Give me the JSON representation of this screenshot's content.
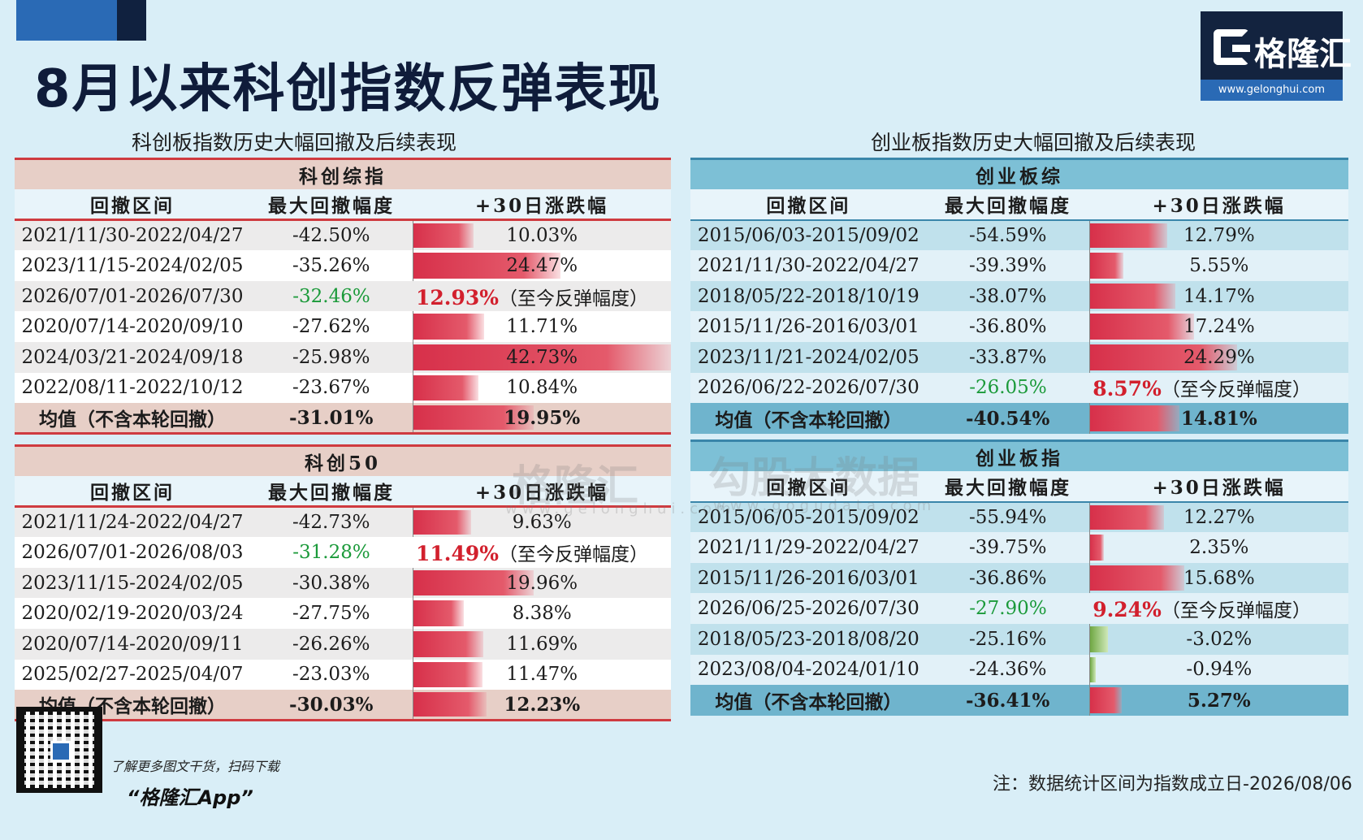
{
  "title": "8月以来科创指数反弹表现",
  "logo": {
    "brand": "格隆汇",
    "url": "www.gelonghui.com"
  },
  "left_section_title": "科创板指数历史大幅回撤及后续表现",
  "right_section_title": "创业板指数历史大幅回撤及后续表现",
  "headers": [
    "回撤区间",
    "最大回撤幅度",
    "+30日涨跌幅"
  ],
  "rebound_note": "（至今反弹幅度）",
  "avg_label": "均值（不含本轮回撤）",
  "tables": {
    "kc_composite": {
      "title": "科创综指",
      "rows": [
        {
          "period": "2021/11/30-2022/04/27",
          "drawdown": "-42.50%",
          "ret": "10.03%",
          "ret_value": 10.03
        },
        {
          "period": "2023/11/15-2024/02/05",
          "drawdown": "-35.26%",
          "ret": "24.47%",
          "ret_value": 24.47
        },
        {
          "period": "2026/07/01-2026/07/30",
          "drawdown": "-32.46%",
          "ret": "12.93%",
          "ret_value": 12.93,
          "current": true
        },
        {
          "period": "2020/07/14-2020/09/10",
          "drawdown": "-27.62%",
          "ret": "11.71%",
          "ret_value": 11.71
        },
        {
          "period": "2024/03/21-2024/09/18",
          "drawdown": "-25.98%",
          "ret": "42.73%",
          "ret_value": 42.73
        },
        {
          "period": "2022/08/11-2022/10/12",
          "drawdown": "-23.67%",
          "ret": "10.84%",
          "ret_value": 10.84
        }
      ],
      "avg": {
        "drawdown": "-31.01%",
        "ret": "19.95%",
        "ret_value": 19.95
      }
    },
    "kc50": {
      "title": "科创50",
      "rows": [
        {
          "period": "2021/11/24-2022/04/27",
          "drawdown": "-42.73%",
          "ret": "9.63%",
          "ret_value": 9.63
        },
        {
          "period": "2026/07/01-2026/08/03",
          "drawdown": "-31.28%",
          "ret": "11.49%",
          "ret_value": 11.49,
          "current": true
        },
        {
          "period": "2023/11/15-2024/02/05",
          "drawdown": "-30.38%",
          "ret": "19.96%",
          "ret_value": 19.96
        },
        {
          "period": "2020/02/19-2020/03/24",
          "drawdown": "-27.75%",
          "ret": "8.38%",
          "ret_value": 8.38
        },
        {
          "period": "2020/07/14-2020/09/11",
          "drawdown": "-26.26%",
          "ret": "11.69%",
          "ret_value": 11.69
        },
        {
          "period": "2025/02/27-2025/04/07",
          "drawdown": "-23.03%",
          "ret": "11.47%",
          "ret_value": 11.47
        }
      ],
      "avg": {
        "drawdown": "-30.03%",
        "ret": "12.23%",
        "ret_value": 12.23
      }
    },
    "cy_composite": {
      "title": "创业板综",
      "rows": [
        {
          "period": "2015/06/03-2015/09/02",
          "drawdown": "-54.59%",
          "ret": "12.79%",
          "ret_value": 12.79
        },
        {
          "period": "2021/11/30-2022/04/27",
          "drawdown": "-39.39%",
          "ret": "5.55%",
          "ret_value": 5.55
        },
        {
          "period": "2018/05/22-2018/10/19",
          "drawdown": "-38.07%",
          "ret": "14.17%",
          "ret_value": 14.17
        },
        {
          "period": "2015/11/26-2016/03/01",
          "drawdown": "-36.80%",
          "ret": "17.24%",
          "ret_value": 17.24
        },
        {
          "period": "2023/11/21-2024/02/05",
          "drawdown": "-33.87%",
          "ret": "24.29%",
          "ret_value": 24.29
        },
        {
          "period": "2026/06/22-2026/07/30",
          "drawdown": "-26.05%",
          "ret": "8.57%",
          "ret_value": 8.57,
          "current": true
        }
      ],
      "avg": {
        "drawdown": "-40.54%",
        "ret": "14.81%",
        "ret_value": 14.81
      }
    },
    "cy_index": {
      "title": "创业板指",
      "rows": [
        {
          "period": "2015/06/05-2015/09/02",
          "drawdown": "-55.94%",
          "ret": "12.27%",
          "ret_value": 12.27
        },
        {
          "period": "2021/11/29-2022/04/27",
          "drawdown": "-39.75%",
          "ret": "2.35%",
          "ret_value": 2.35
        },
        {
          "period": "2015/11/26-2016/03/01",
          "drawdown": "-36.86%",
          "ret": "15.68%",
          "ret_value": 15.68
        },
        {
          "period": "2026/06/25-2026/07/30",
          "drawdown": "-27.90%",
          "ret": "9.24%",
          "ret_value": 9.24,
          "current": true
        },
        {
          "period": "2018/05/23-2018/08/20",
          "drawdown": "-25.16%",
          "ret": "-3.02%",
          "ret_value": -3.02
        },
        {
          "period": "2023/08/04-2024/01/10",
          "drawdown": "-24.36%",
          "ret": "-0.94%",
          "ret_value": -0.94
        }
      ],
      "avg": {
        "drawdown": "-36.41%",
        "ret": "5.27%",
        "ret_value": 5.27
      }
    }
  },
  "footer": {
    "line1": "了解更多图文干货，扫码下载",
    "line2": "“格隆汇App”",
    "note": "注：数据统计区间为指数成立日-2026/08/06"
  },
  "watermarks": {
    "brand": "格隆汇",
    "brand_url": "www.gelonghui.com",
    "gogu": "勾股大数据",
    "gogu_url": "www.gogudata.com"
  }
}
